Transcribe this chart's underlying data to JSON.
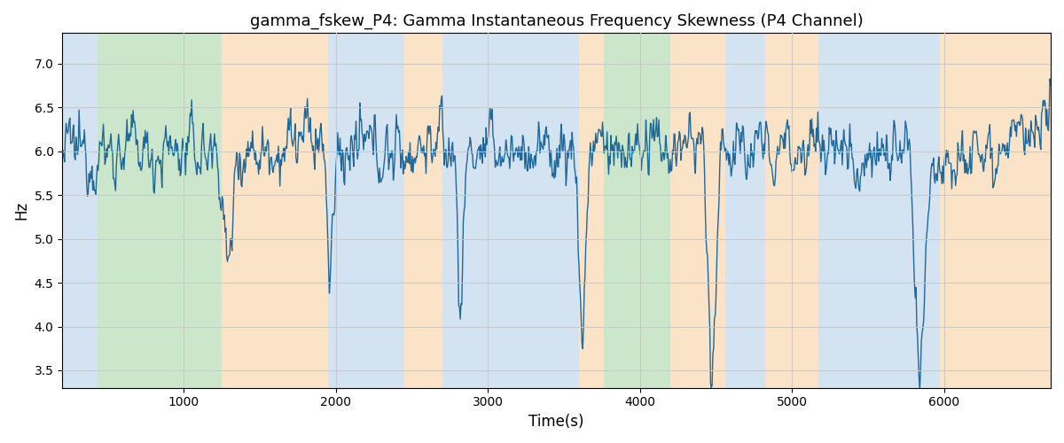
{
  "title": "gamma_fskew_P4: Gamma Instantaneous Frequency Skewness (P4 Channel)",
  "xlabel": "Time(s)",
  "ylabel": "Hz",
  "xlim": [
    200,
    6700
  ],
  "ylim": [
    3.3,
    7.35
  ],
  "line_color": "#1f6899",
  "line_width": 1.0,
  "bg_color": "#ffffff",
  "segments": [
    {
      "start": 200,
      "end": 430,
      "color": "#aac8e4",
      "alpha": 0.5
    },
    {
      "start": 430,
      "end": 1250,
      "color": "#8cc88c",
      "alpha": 0.45
    },
    {
      "start": 1250,
      "end": 1950,
      "color": "#f8c890",
      "alpha": 0.5
    },
    {
      "start": 1950,
      "end": 2450,
      "color": "#aac8e4",
      "alpha": 0.5
    },
    {
      "start": 2450,
      "end": 2700,
      "color": "#f8c890",
      "alpha": 0.5
    },
    {
      "start": 2700,
      "end": 3600,
      "color": "#aac8e4",
      "alpha": 0.5
    },
    {
      "start": 3600,
      "end": 3760,
      "color": "#f8c890",
      "alpha": 0.5
    },
    {
      "start": 3760,
      "end": 4200,
      "color": "#8cc88c",
      "alpha": 0.45
    },
    {
      "start": 4200,
      "end": 4560,
      "color": "#f8c890",
      "alpha": 0.5
    },
    {
      "start": 4560,
      "end": 4820,
      "color": "#aac8e4",
      "alpha": 0.5
    },
    {
      "start": 4820,
      "end": 5170,
      "color": "#f8c890",
      "alpha": 0.5
    },
    {
      "start": 5170,
      "end": 5970,
      "color": "#aac8e4",
      "alpha": 0.5
    },
    {
      "start": 5970,
      "end": 6700,
      "color": "#f8c890",
      "alpha": 0.5
    }
  ],
  "yticks": [
    3.5,
    4.0,
    4.5,
    5.0,
    5.5,
    6.0,
    6.5,
    7.0
  ],
  "xticks": [
    1000,
    2000,
    3000,
    4000,
    5000,
    6000
  ],
  "seed": 12345,
  "n_points": 1300
}
